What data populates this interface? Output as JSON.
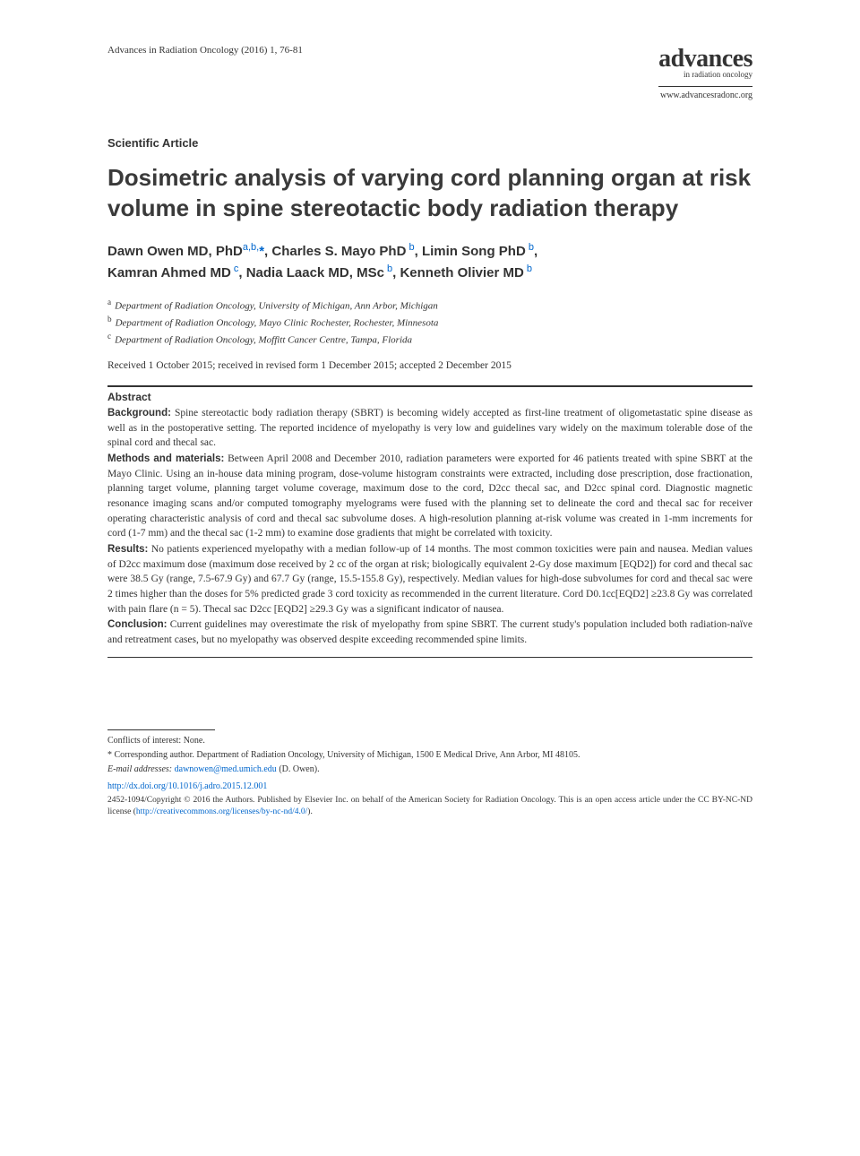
{
  "header": {
    "citation": "Advances in Radiation Oncology (2016) 1, 76-81",
    "logo_main": "advances",
    "logo_sub": "in radiation oncology",
    "website": "www.advancesradonc.org"
  },
  "article_type": "Scientific Article",
  "title": "Dosimetric analysis of varying cord planning organ at risk volume in spine stereotactic body radiation therapy",
  "authors": {
    "a1_name": "Dawn Owen MD, PhD",
    "a1_sup": "a,b,",
    "a1_star": "*",
    "a2_name": ", Charles S. Mayo PhD",
    "a2_sup": " b",
    "a3_name": ", Limin Song PhD",
    "a3_sup": " b",
    "a4_name": "Kamran Ahmed MD",
    "a4_sup": " c",
    "a5_name": ", Nadia Laack MD, MSc",
    "a5_sup": " b",
    "a6_name": ", Kenneth Olivier MD",
    "a6_sup": " b"
  },
  "affiliations": {
    "a_sup": "a",
    "a_text": "Department of Radiation Oncology, University of Michigan, Ann Arbor, Michigan",
    "b_sup": "b",
    "b_text": "Department of Radiation Oncology, Mayo Clinic Rochester, Rochester, Minnesota",
    "c_sup": "c",
    "c_text": "Department of Radiation Oncology, Moffitt Cancer Centre, Tampa, Florida"
  },
  "dates": "Received 1 October 2015; received in revised form 1 December 2015; accepted 2 December 2015",
  "abstract": {
    "label": "Abstract",
    "background_h": "Background:",
    "background": " Spine stereotactic body radiation therapy (SBRT) is becoming widely accepted as first-line treatment of oligometastatic spine disease as well as in the postoperative setting. The reported incidence of myelopathy is very low and guidelines vary widely on the maximum tolerable dose of the spinal cord and thecal sac.",
    "methods_h": "Methods and materials:",
    "methods": " Between April 2008 and December 2010, radiation parameters were exported for 46 patients treated with spine SBRT at the Mayo Clinic. Using an in-house data mining program, dose-volume histogram constraints were extracted, including dose prescription, dose fractionation, planning target volume, planning target volume coverage, maximum dose to the cord, D2cc thecal sac, and D2cc spinal cord. Diagnostic magnetic resonance imaging scans and/or computed tomography myelograms were fused with the planning set to delineate the cord and thecal sac for receiver operating characteristic analysis of cord and thecal sac subvolume doses. A high-resolution planning at-risk volume was created in 1-mm increments for cord (1-7 mm) and the thecal sac (1-2 mm) to examine dose gradients that might be correlated with toxicity.",
    "results_h": "Results:",
    "results": " No patients experienced myelopathy with a median follow-up of 14 months. The most common toxicities were pain and nausea. Median values of D2cc maximum dose (maximum dose received by 2 cc of the organ at risk; biologically equivalent 2-Gy dose maximum [EQD2]) for cord and thecal sac were 38.5 Gy (range, 7.5-67.9 Gy) and 67.7 Gy (range, 15.5-155.8 Gy), respectively. Median values for high-dose subvolumes for cord and thecal sac were 2 times higher than the doses for 5% predicted grade 3 cord toxicity as recommended in the current literature. Cord D0.1cc[EQD2] ≥23.8 Gy was correlated with pain flare (n = 5). Thecal sac D2cc [EQD2] ≥29.3 Gy was a significant indicator of nausea.",
    "conclusion_h": "Conclusion:",
    "conclusion": " Current guidelines may overestimate the risk of myelopathy from spine SBRT. The current study's population included both radiation-naïve and retreatment cases, but no myelopathy was observed despite exceeding recommended spine limits."
  },
  "footnotes": {
    "conflicts": "Conflicts of interest: None.",
    "corresponding_marker": "*",
    "corresponding": " Corresponding author. Department of Radiation Oncology, University of Michigan, 1500 E Medical Drive, Ann Arbor, MI 48105.",
    "email_label": "E-mail addresses: ",
    "email": "dawnowen@med.umich.edu",
    "email_suffix": " (D. Owen).",
    "doi": "http://dx.doi.org/10.1016/j.adro.2015.12.001",
    "copyright_prefix": "2452-1094/Copyright © 2016 the Authors. Published by Elsevier Inc. on behalf of the American Society for Radiation Oncology. This is an open access article under the CC BY-NC-ND license (",
    "license_url": "http://creativecommons.org/licenses/by-nc-nd/4.0/",
    "copyright_suffix": ")."
  }
}
